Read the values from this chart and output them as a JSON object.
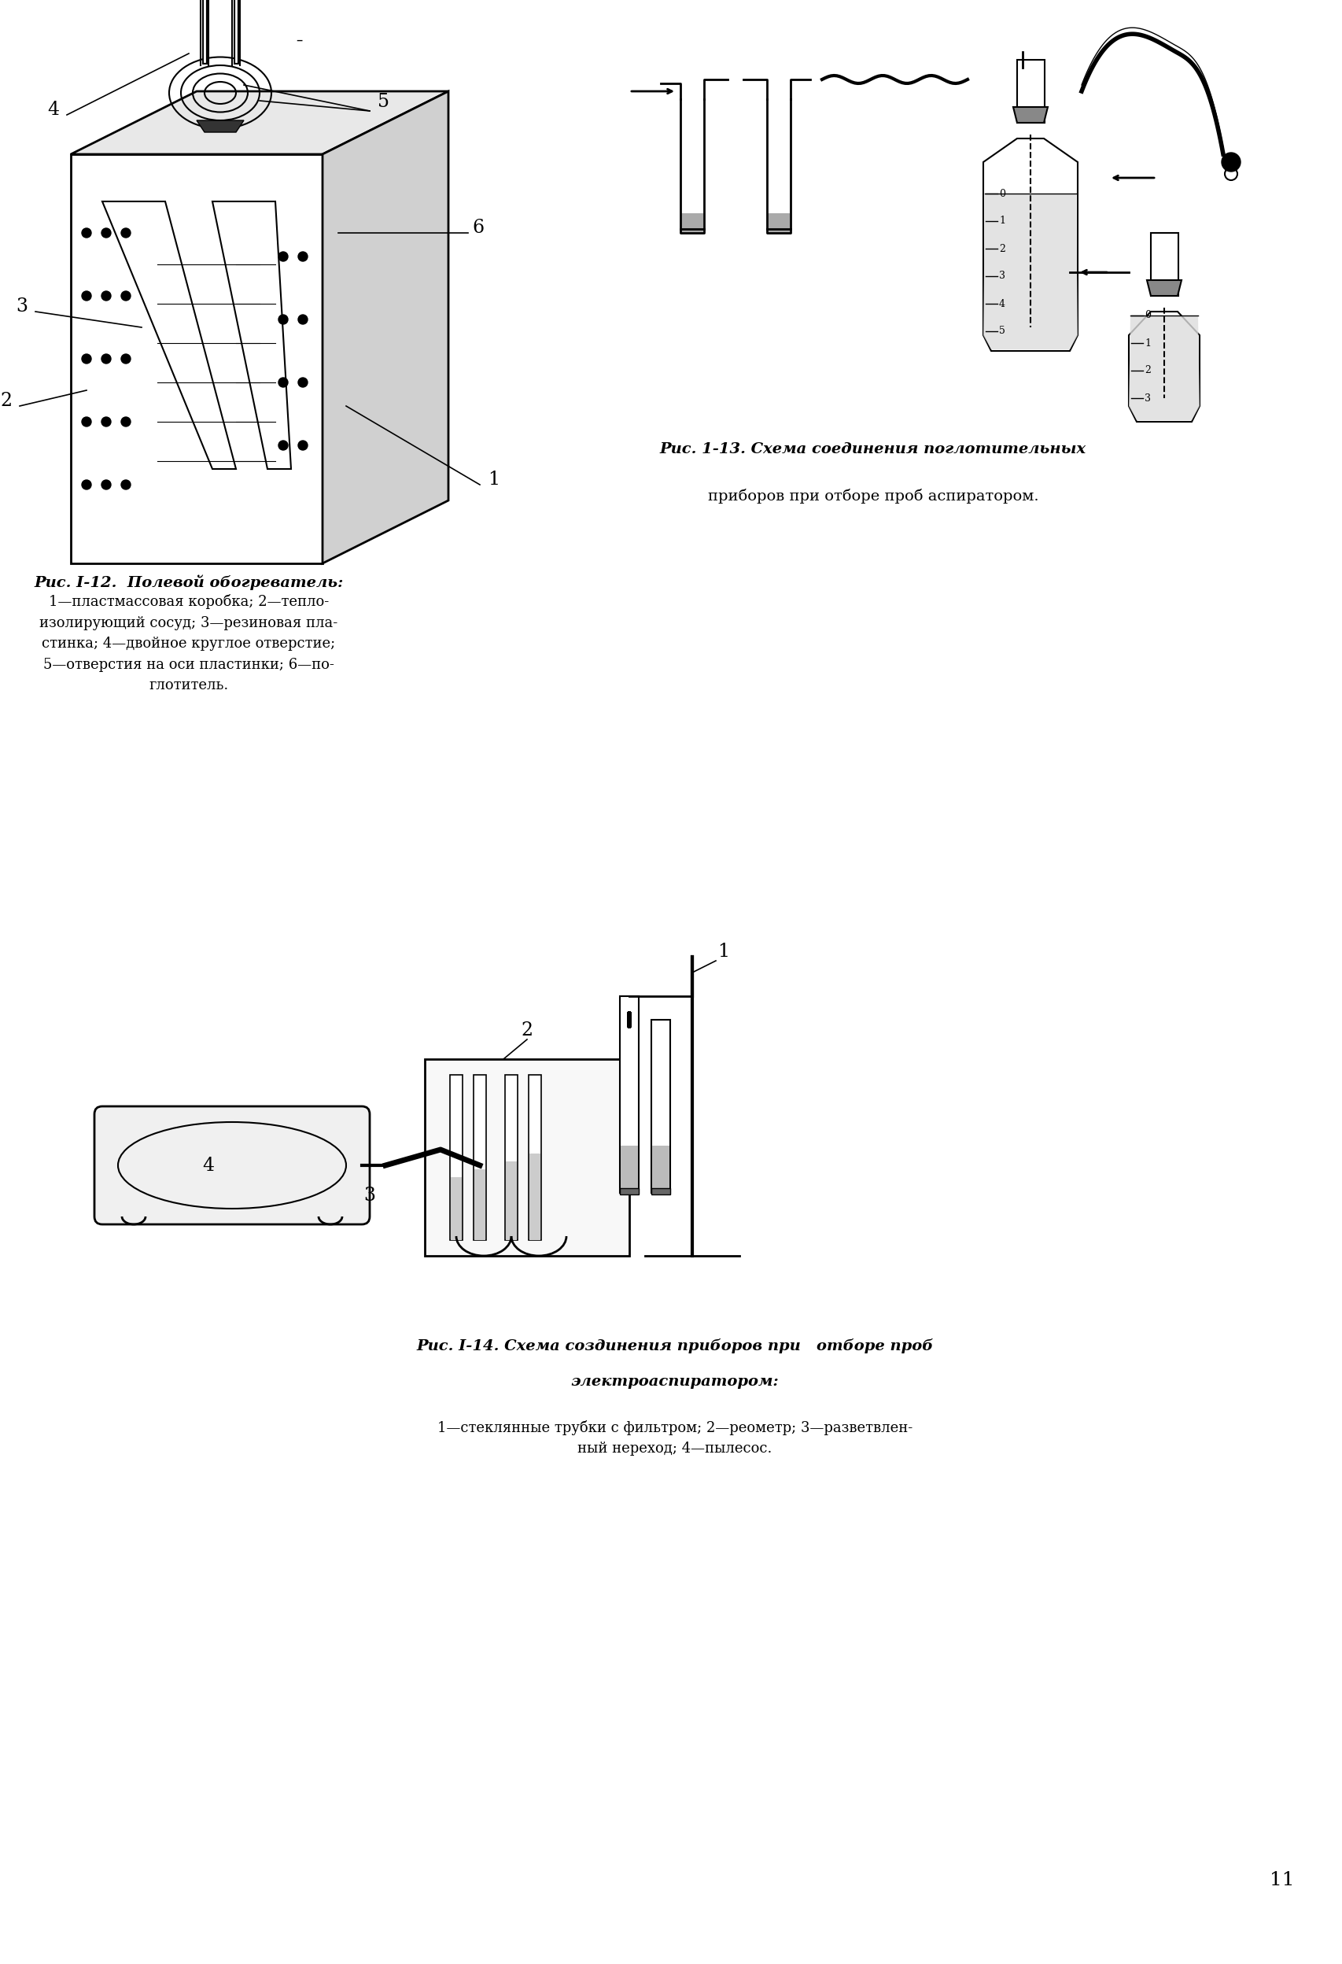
{
  "page_background": "#ffffff",
  "page_number": "11",
  "fig1": {
    "caption_title": "Рис. I-12.  Полевой обогреватель:",
    "caption_body": "1—пластмассовая коробка; 2—тепло-\nизолирующий сосуд; 3—резиновая пла-\nстинка; 4—двойное круглое отверстие;\n5—отверстия на оси пластинки; 6—по-\nглотитель."
  },
  "fig2": {
    "caption_title": "Рис. 1-13. Схема соединения поглотительных",
    "caption_body": "приборов при отборе проб аспиратором."
  },
  "fig3": {
    "caption_title": "Рис. I-14. Схема создинения приборов при   отборе проб",
    "caption_subtitle": "электроаспиратором:",
    "caption_body": "1—стеклянные трубки с фильтром; 2—реометр; 3—разветвлен-\nный нереход; 4—пылесос."
  },
  "line_color": "#000000",
  "text_color": "#000000",
  "font_family": "serif"
}
